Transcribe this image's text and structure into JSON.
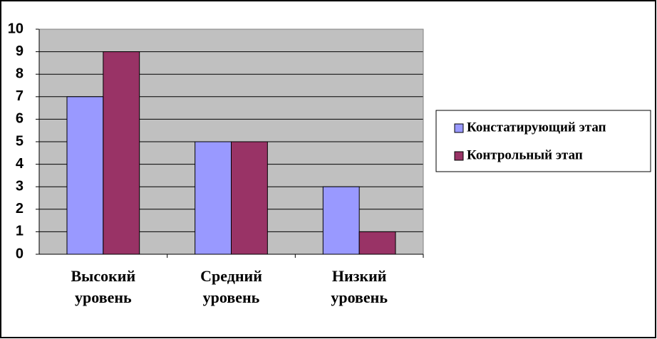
{
  "chart_data": {
    "type": "bar",
    "categories": [
      "Высокий уровень",
      "Средний уровень",
      "Низкий уровень"
    ],
    "series": [
      {
        "name": "Констатирующий этап",
        "color": "#9999ff",
        "values": [
          7,
          5,
          3
        ]
      },
      {
        "name": "Контрольный этап",
        "color": "#993366",
        "values": [
          9,
          5,
          1
        ]
      }
    ],
    "ylim": [
      0,
      10
    ],
    "yticks": [
      0,
      1,
      2,
      3,
      4,
      5,
      6,
      7,
      8,
      9,
      10
    ],
    "grid": true,
    "legend": "right"
  }
}
